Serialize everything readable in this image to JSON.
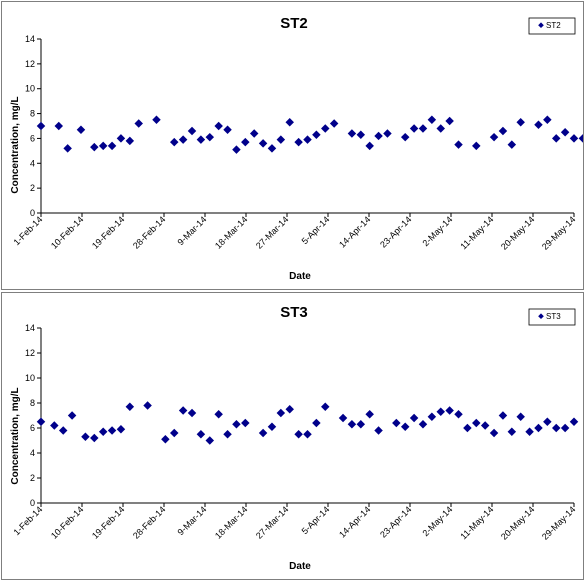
{
  "chart_data": [
    {
      "type": "scatter",
      "title": "ST2",
      "xlabel": "Date",
      "ylabel": "Concentration, mg/L",
      "ylim": [
        0,
        14
      ],
      "yticks": [
        0,
        2,
        4,
        6,
        8,
        10,
        12,
        14
      ],
      "xlim": [
        "2014-02-01",
        "2014-06-01"
      ],
      "xtick_labels": [
        "1-Feb-14",
        "10-Feb-14",
        "19-Feb-14",
        "28-Feb-14",
        "9-Mar-14",
        "18-Mar-14",
        "27-Mar-14",
        "5-Apr-14",
        "14-Apr-14",
        "23-Apr-14",
        "2-May-14",
        "11-May-14",
        "20-May-14",
        "29-May-14"
      ],
      "grid": false,
      "legend_position": "top-right",
      "marker_color": "#00008b",
      "series": [
        {
          "name": "ST2",
          "x": [
            "2014-02-01",
            "2014-02-05",
            "2014-02-07",
            "2014-02-10",
            "2014-02-13",
            "2014-02-15",
            "2014-02-17",
            "2014-02-19",
            "2014-02-21",
            "2014-02-23",
            "2014-02-27",
            "2014-03-03",
            "2014-03-05",
            "2014-03-07",
            "2014-03-09",
            "2014-03-11",
            "2014-03-13",
            "2014-03-15",
            "2014-03-17",
            "2014-03-19",
            "2014-03-21",
            "2014-03-23",
            "2014-03-25",
            "2014-03-27",
            "2014-03-29",
            "2014-03-31",
            "2014-04-02",
            "2014-04-04",
            "2014-04-06",
            "2014-04-08",
            "2014-04-12",
            "2014-04-14",
            "2014-04-16",
            "2014-04-18",
            "2014-04-20",
            "2014-04-24",
            "2014-04-26",
            "2014-04-28",
            "2014-04-30",
            "2014-05-02",
            "2014-05-04",
            "2014-05-06",
            "2014-05-10",
            "2014-05-14",
            "2014-05-16",
            "2014-05-18",
            "2014-05-20",
            "2014-05-24",
            "2014-05-26",
            "2014-05-28",
            "2014-05-30",
            "2014-06-01",
            "2014-06-03"
          ],
          "y": [
            7.0,
            7.0,
            5.2,
            6.7,
            5.3,
            5.4,
            5.4,
            6.0,
            5.8,
            7.2,
            7.5,
            5.7,
            5.9,
            6.6,
            5.9,
            6.1,
            7.0,
            6.7,
            5.1,
            5.7,
            6.4,
            5.6,
            5.2,
            5.9,
            7.3,
            5.7,
            5.9,
            6.3,
            6.8,
            7.2,
            6.4,
            6.3,
            5.4,
            6.2,
            6.4,
            6.1,
            6.8,
            6.8,
            7.5,
            6.8,
            7.4,
            5.5,
            5.4,
            6.1,
            6.6,
            5.5,
            7.3,
            7.1,
            7.5,
            6.0,
            6.5,
            6.0,
            6.0
          ]
        }
      ]
    },
    {
      "type": "scatter",
      "title": "ST3",
      "xlabel": "Date",
      "ylabel": "Concentration, mg/L",
      "ylim": [
        0,
        14
      ],
      "yticks": [
        0,
        2,
        4,
        6,
        8,
        10,
        12,
        14
      ],
      "xlim": [
        "2014-02-01",
        "2014-06-01"
      ],
      "xtick_labels": [
        "1-Feb-14",
        "10-Feb-14",
        "19-Feb-14",
        "28-Feb-14",
        "9-Mar-14",
        "18-Mar-14",
        "27-Mar-14",
        "5-Apr-14",
        "14-Apr-14",
        "23-Apr-14",
        "2-May-14",
        "11-May-14",
        "20-May-14",
        "29-May-14"
      ],
      "grid": false,
      "legend_position": "top-right",
      "marker_color": "#00008b",
      "series": [
        {
          "name": "ST3",
          "x": [
            "2014-02-01",
            "2014-02-04",
            "2014-02-06",
            "2014-02-08",
            "2014-02-11",
            "2014-02-13",
            "2014-02-15",
            "2014-02-17",
            "2014-02-19",
            "2014-02-21",
            "2014-02-25",
            "2014-03-01",
            "2014-03-03",
            "2014-03-05",
            "2014-03-07",
            "2014-03-09",
            "2014-03-11",
            "2014-03-13",
            "2014-03-15",
            "2014-03-17",
            "2014-03-19",
            "2014-03-23",
            "2014-03-25",
            "2014-03-27",
            "2014-03-29",
            "2014-03-31",
            "2014-04-02",
            "2014-04-04",
            "2014-04-06",
            "2014-04-10",
            "2014-04-12",
            "2014-04-14",
            "2014-04-16",
            "2014-04-18",
            "2014-04-22",
            "2014-04-24",
            "2014-04-26",
            "2014-04-28",
            "2014-04-30",
            "2014-05-02",
            "2014-05-04",
            "2014-05-06",
            "2014-05-08",
            "2014-05-10",
            "2014-05-12",
            "2014-05-14",
            "2014-05-16",
            "2014-05-18",
            "2014-05-20",
            "2014-05-22",
            "2014-05-24",
            "2014-05-26",
            "2014-05-28",
            "2014-05-30",
            "2014-06-01"
          ],
          "y": [
            6.5,
            6.2,
            5.8,
            7.0,
            5.3,
            5.2,
            5.7,
            5.8,
            5.9,
            7.7,
            7.8,
            5.1,
            5.6,
            7.4,
            7.2,
            5.5,
            5.0,
            7.1,
            5.5,
            6.3,
            6.4,
            5.6,
            6.1,
            7.2,
            7.5,
            5.5,
            5.5,
            6.4,
            7.7,
            6.8,
            6.3,
            6.3,
            7.1,
            5.8,
            6.4,
            6.1,
            6.8,
            6.3,
            6.9,
            7.3,
            7.4,
            7.1,
            6.0,
            6.4,
            6.2,
            5.6,
            7.0,
            5.7,
            6.9,
            5.7,
            6.0,
            6.5,
            6.0,
            6.0,
            6.5
          ]
        }
      ]
    }
  ]
}
